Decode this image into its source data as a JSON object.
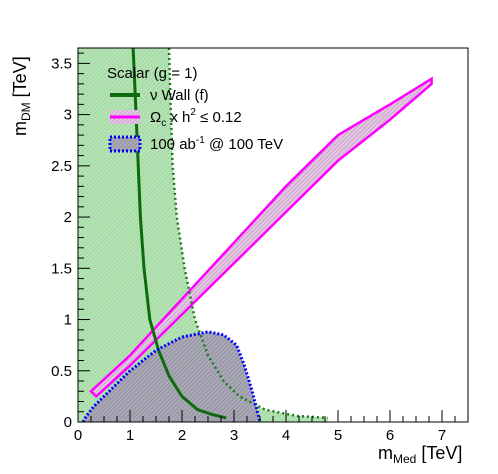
{
  "chart_data": {
    "type": "area",
    "xlabel": "m",
    "xlabel_sub": "Med",
    "xlabel_unit": "[TeV]",
    "ylabel": "m",
    "ylabel_sub": "DM",
    "ylabel_unit": "[TeV]",
    "xlim": [
      0,
      7.5
    ],
    "ylim": [
      0,
      3.65
    ],
    "xticks": [
      0,
      1,
      2,
      3,
      4,
      5,
      6,
      7
    ],
    "yticks": [
      0,
      0.5,
      1,
      1.5,
      2,
      2.5,
      3,
      3.5
    ],
    "grid": false,
    "legend_position": "top-left",
    "legend_header": "Scalar (g = 1)",
    "colors": {
      "neutrino_wall": "#1a7a1a",
      "neutrino_fill": "#a8dba8",
      "relic": "#ff00ff",
      "reach_line": "#0000ff",
      "reach_fill": "#9a9aa8"
    },
    "series": [
      {
        "legend": "ν Wall (f)",
        "style": "solid-line-with-filled-region",
        "curve": [
          [
            1.06,
            3.65
          ],
          [
            1.1,
            3.2
          ],
          [
            1.15,
            2.6
          ],
          [
            1.2,
            2.0
          ],
          [
            1.27,
            1.5
          ],
          [
            1.38,
            1.0
          ],
          [
            1.55,
            0.7
          ],
          [
            1.75,
            0.45
          ],
          [
            2.0,
            0.25
          ],
          [
            2.3,
            0.12
          ],
          [
            2.6,
            0.07
          ],
          [
            2.85,
            0.04
          ]
        ],
        "dotted_companion": [
          [
            1.75,
            3.65
          ],
          [
            1.78,
            3.1
          ],
          [
            1.82,
            2.5
          ],
          [
            1.9,
            2.0
          ],
          [
            2.05,
            1.5
          ],
          [
            2.25,
            1.0
          ],
          [
            2.5,
            0.65
          ],
          [
            2.8,
            0.4
          ],
          [
            3.1,
            0.25
          ],
          [
            3.6,
            0.12
          ],
          [
            4.2,
            0.06
          ],
          [
            4.8,
            0.04
          ]
        ],
        "filled_region_x_max_at_y_max": 1.75
      },
      {
        "legend_parts": [
          "Ω",
          "c",
          " x h",
          "2",
          " ≤ 0.12"
        ],
        "style": "magenta-band",
        "upper": [
          [
            0.25,
            0.3
          ],
          [
            1.0,
            0.65
          ],
          [
            2.0,
            1.2
          ],
          [
            3.0,
            1.75
          ],
          [
            4.0,
            2.3
          ],
          [
            5.0,
            2.8
          ],
          [
            6.0,
            3.1
          ],
          [
            6.8,
            3.35
          ]
        ],
        "lower": [
          [
            0.35,
            0.25
          ],
          [
            1.0,
            0.55
          ],
          [
            2.0,
            1.05
          ],
          [
            3.0,
            1.55
          ],
          [
            4.0,
            2.05
          ],
          [
            5.0,
            2.55
          ],
          [
            6.0,
            2.95
          ],
          [
            6.8,
            3.3
          ]
        ]
      },
      {
        "legend_parts": [
          "100 ab",
          "-1",
          " @ 100 TeV"
        ],
        "style": "blue-dotted-filled-region",
        "contour": [
          [
            0.1,
            0.0
          ],
          [
            0.15,
            0.05
          ],
          [
            0.3,
            0.15
          ],
          [
            0.6,
            0.3
          ],
          [
            1.0,
            0.5
          ],
          [
            1.5,
            0.7
          ],
          [
            2.0,
            0.83
          ],
          [
            2.5,
            0.88
          ],
          [
            2.8,
            0.85
          ],
          [
            3.05,
            0.75
          ],
          [
            3.2,
            0.55
          ],
          [
            3.35,
            0.3
          ],
          [
            3.45,
            0.1
          ],
          [
            3.5,
            0.0
          ]
        ]
      }
    ]
  }
}
